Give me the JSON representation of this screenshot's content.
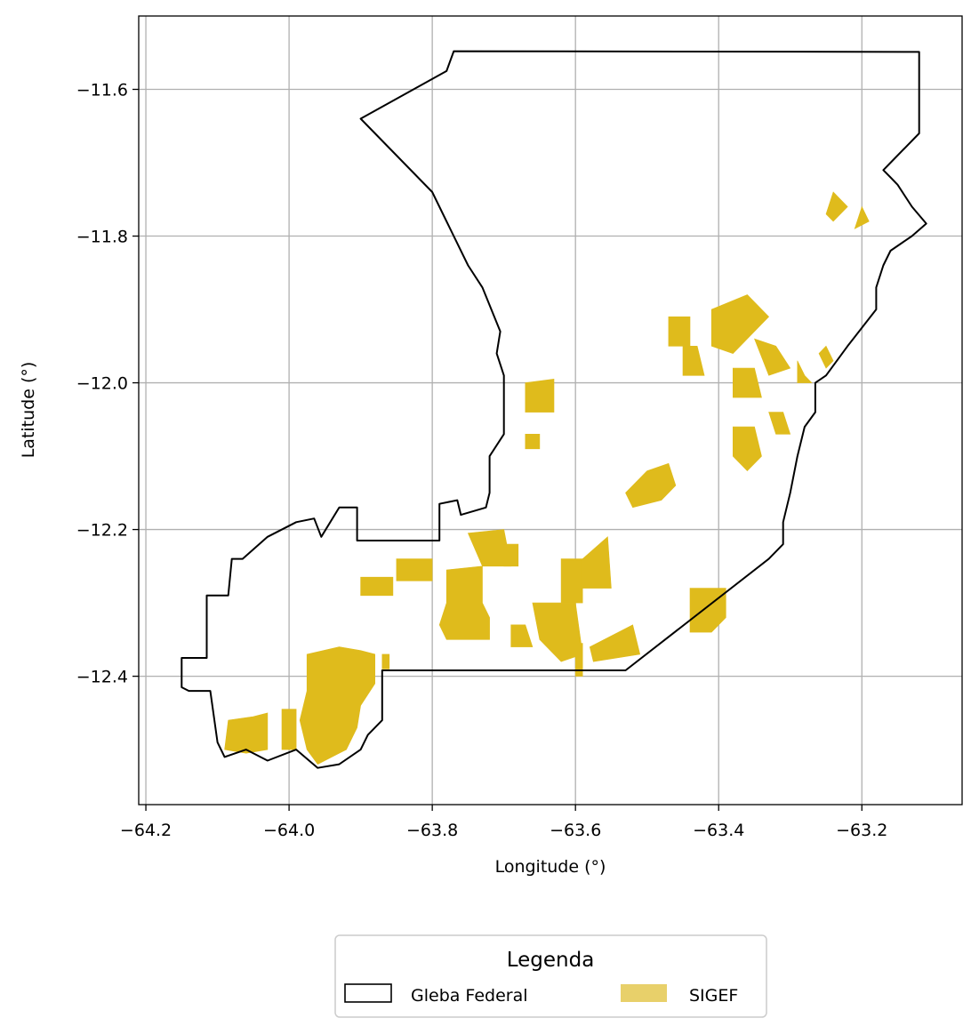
{
  "chart_data": {
    "type": "map",
    "xlabel": "Longitude (°)",
    "ylabel": "Latitude (°)",
    "xlim": [
      -64.21,
      -63.06
    ],
    "ylim": [
      -12.575,
      -11.5
    ],
    "grid": true,
    "x_ticks": [
      {
        "value": -64.2,
        "label": "−64.2"
      },
      {
        "value": -64.0,
        "label": "−64.0"
      },
      {
        "value": -63.8,
        "label": "−63.8"
      },
      {
        "value": -63.6,
        "label": "−63.6"
      },
      {
        "value": -63.4,
        "label": "−63.4"
      },
      {
        "value": -63.2,
        "label": "−63.2"
      }
    ],
    "y_ticks": [
      {
        "value": -11.6,
        "label": "−11.6"
      },
      {
        "value": -11.8,
        "label": "−11.8"
      },
      {
        "value": -12.0,
        "label": "−12.0"
      },
      {
        "value": -12.2,
        "label": "−12.2"
      },
      {
        "value": -12.4,
        "label": "−12.4"
      }
    ],
    "legend": {
      "title": "Legenda",
      "position": "bottom-center",
      "items": [
        {
          "label": "Gleba Federal",
          "style": "outline",
          "color": "#000000"
        },
        {
          "label": "SIGEF",
          "style": "fill",
          "color": "#E8D06A"
        }
      ]
    },
    "colors": {
      "boundary": "#000000",
      "parcel": "#DFBB1C",
      "grid": "#B0B0B0"
    },
    "boundary": [
      [
        -63.77,
        -11.548
      ],
      [
        -63.12,
        -11.549
      ],
      [
        -63.12,
        -11.66
      ],
      [
        -63.16,
        -11.7
      ],
      [
        -63.17,
        -11.71
      ],
      [
        -63.16,
        -11.72
      ],
      [
        -63.15,
        -11.73
      ],
      [
        -63.13,
        -11.76
      ],
      [
        -63.11,
        -11.783
      ],
      [
        -63.13,
        -11.8
      ],
      [
        -63.16,
        -11.82
      ],
      [
        -63.17,
        -11.84
      ],
      [
        -63.18,
        -11.87
      ],
      [
        -63.18,
        -11.9
      ],
      [
        -63.22,
        -11.95
      ],
      [
        -63.25,
        -11.99
      ],
      [
        -63.265,
        -12.0
      ],
      [
        -63.265,
        -12.04
      ],
      [
        -63.28,
        -12.06
      ],
      [
        -63.29,
        -12.1
      ],
      [
        -63.3,
        -12.15
      ],
      [
        -63.31,
        -12.19
      ],
      [
        -63.31,
        -12.22
      ],
      [
        -63.33,
        -12.24
      ],
      [
        -63.53,
        -12.392
      ],
      [
        -63.87,
        -12.392
      ],
      [
        -63.87,
        -12.46
      ],
      [
        -63.89,
        -12.48
      ],
      [
        -63.9,
        -12.5
      ],
      [
        -63.93,
        -12.52
      ],
      [
        -63.96,
        -12.525
      ],
      [
        -63.99,
        -12.5
      ],
      [
        -64.03,
        -12.515
      ],
      [
        -64.06,
        -12.5
      ],
      [
        -64.09,
        -12.51
      ],
      [
        -64.1,
        -12.49
      ],
      [
        -64.11,
        -12.42
      ],
      [
        -64.14,
        -12.42
      ],
      [
        -64.15,
        -12.415
      ],
      [
        -64.15,
        -12.375
      ],
      [
        -64.115,
        -12.375
      ],
      [
        -64.115,
        -12.29
      ],
      [
        -64.085,
        -12.29
      ],
      [
        -64.08,
        -12.24
      ],
      [
        -64.065,
        -12.24
      ],
      [
        -64.03,
        -12.21
      ],
      [
        -63.99,
        -12.19
      ],
      [
        -63.965,
        -12.185
      ],
      [
        -63.955,
        -12.21
      ],
      [
        -63.93,
        -12.17
      ],
      [
        -63.905,
        -12.17
      ],
      [
        -63.905,
        -12.215
      ],
      [
        -63.79,
        -12.215
      ],
      [
        -63.79,
        -12.165
      ],
      [
        -63.765,
        -12.16
      ],
      [
        -63.76,
        -12.18
      ],
      [
        -63.725,
        -12.17
      ],
      [
        -63.72,
        -12.15
      ],
      [
        -63.72,
        -12.1
      ],
      [
        -63.7,
        -12.07
      ],
      [
        -63.7,
        -11.99
      ],
      [
        -63.71,
        -11.96
      ],
      [
        -63.705,
        -11.93
      ],
      [
        -63.73,
        -11.87
      ],
      [
        -63.75,
        -11.84
      ],
      [
        -63.78,
        -11.78
      ],
      [
        -63.8,
        -11.74
      ],
      [
        -63.9,
        -11.64
      ],
      [
        -63.78,
        -11.575
      ]
    ],
    "parcels": [
      [
        [
          -63.975,
          -12.37
        ],
        [
          -63.93,
          -12.36
        ],
        [
          -63.9,
          -12.365
        ],
        [
          -63.88,
          -12.37
        ],
        [
          -63.88,
          -12.41
        ],
        [
          -63.9,
          -12.44
        ],
        [
          -63.905,
          -12.47
        ],
        [
          -63.92,
          -12.5
        ],
        [
          -63.96,
          -12.52
        ],
        [
          -63.975,
          -12.5
        ],
        [
          -63.985,
          -12.46
        ],
        [
          -63.975,
          -12.42
        ]
      ],
      [
        [
          -64.085,
          -12.46
        ],
        [
          -64.05,
          -12.455
        ],
        [
          -64.03,
          -12.45
        ],
        [
          -64.03,
          -12.5
        ],
        [
          -64.06,
          -12.505
        ],
        [
          -64.09,
          -12.5
        ]
      ],
      [
        [
          -64.01,
          -12.445
        ],
        [
          -63.99,
          -12.445
        ],
        [
          -63.99,
          -12.5
        ],
        [
          -64.01,
          -12.5
        ]
      ],
      [
        [
          -63.87,
          -12.37
        ],
        [
          -63.86,
          -12.37
        ],
        [
          -63.86,
          -12.39
        ],
        [
          -63.87,
          -12.39
        ]
      ],
      [
        [
          -63.78,
          -12.255
        ],
        [
          -63.73,
          -12.25
        ],
        [
          -63.73,
          -12.3
        ],
        [
          -63.72,
          -12.32
        ],
        [
          -63.72,
          -12.35
        ],
        [
          -63.78,
          -12.35
        ],
        [
          -63.79,
          -12.33
        ],
        [
          -63.78,
          -12.3
        ]
      ],
      [
        [
          -63.9,
          -12.265
        ],
        [
          -63.855,
          -12.265
        ],
        [
          -63.855,
          -12.29
        ],
        [
          -63.9,
          -12.29
        ]
      ],
      [
        [
          -63.85,
          -12.24
        ],
        [
          -63.8,
          -12.24
        ],
        [
          -63.8,
          -12.27
        ],
        [
          -63.85,
          -12.27
        ]
      ],
      [
        [
          -63.75,
          -12.205
        ],
        [
          -63.7,
          -12.2
        ],
        [
          -63.69,
          -12.25
        ],
        [
          -63.73,
          -12.25
        ]
      ],
      [
        [
          -63.7,
          -12.22
        ],
        [
          -63.68,
          -12.22
        ],
        [
          -63.68,
          -12.25
        ],
        [
          -63.7,
          -12.25
        ]
      ],
      [
        [
          -63.62,
          -12.24
        ],
        [
          -63.59,
          -12.24
        ],
        [
          -63.59,
          -12.3
        ],
        [
          -63.62,
          -12.3
        ]
      ],
      [
        [
          -63.66,
          -12.3
        ],
        [
          -63.6,
          -12.3
        ],
        [
          -63.59,
          -12.37
        ],
        [
          -63.62,
          -12.38
        ],
        [
          -63.65,
          -12.35
        ]
      ],
      [
        [
          -63.69,
          -12.33
        ],
        [
          -63.67,
          -12.33
        ],
        [
          -63.66,
          -12.36
        ],
        [
          -63.69,
          -12.36
        ]
      ],
      [
        [
          -63.59,
          -12.24
        ],
        [
          -63.555,
          -12.21
        ],
        [
          -63.55,
          -12.28
        ],
        [
          -63.59,
          -12.28
        ]
      ],
      [
        [
          -63.6,
          -12.355
        ],
        [
          -63.59,
          -12.355
        ],
        [
          -63.59,
          -12.4
        ],
        [
          -63.6,
          -12.4
        ]
      ],
      [
        [
          -63.58,
          -12.36
        ],
        [
          -63.52,
          -12.33
        ],
        [
          -63.51,
          -12.37
        ],
        [
          -63.575,
          -12.38
        ]
      ],
      [
        [
          -63.44,
          -12.28
        ],
        [
          -63.39,
          -12.28
        ],
        [
          -63.39,
          -12.32
        ],
        [
          -63.41,
          -12.34
        ],
        [
          -63.44,
          -12.34
        ]
      ],
      [
        [
          -63.5,
          -12.12
        ],
        [
          -63.47,
          -12.11
        ],
        [
          -63.46,
          -12.14
        ],
        [
          -63.48,
          -12.16
        ],
        [
          -63.52,
          -12.17
        ],
        [
          -63.53,
          -12.15
        ]
      ],
      [
        [
          -63.67,
          -12.0
        ],
        [
          -63.63,
          -11.995
        ],
        [
          -63.63,
          -12.04
        ],
        [
          -63.67,
          -12.04
        ]
      ],
      [
        [
          -63.67,
          -12.07
        ],
        [
          -63.65,
          -12.07
        ],
        [
          -63.65,
          -12.09
        ],
        [
          -63.67,
          -12.09
        ]
      ],
      [
        [
          -63.47,
          -11.91
        ],
        [
          -63.44,
          -11.91
        ],
        [
          -63.44,
          -11.95
        ],
        [
          -63.47,
          -11.95
        ]
      ],
      [
        [
          -63.45,
          -11.95
        ],
        [
          -63.43,
          -11.95
        ],
        [
          -63.42,
          -11.99
        ],
        [
          -63.45,
          -11.99
        ]
      ],
      [
        [
          -63.41,
          -11.9
        ],
        [
          -63.36,
          -11.88
        ],
        [
          -63.33,
          -11.91
        ],
        [
          -63.38,
          -11.96
        ],
        [
          -63.41,
          -11.95
        ]
      ],
      [
        [
          -63.38,
          -11.98
        ],
        [
          -63.35,
          -11.98
        ],
        [
          -63.34,
          -12.02
        ],
        [
          -63.38,
          -12.02
        ]
      ],
      [
        [
          -63.35,
          -11.94
        ],
        [
          -63.32,
          -11.95
        ],
        [
          -63.3,
          -11.98
        ],
        [
          -63.33,
          -11.99
        ]
      ],
      [
        [
          -63.38,
          -12.06
        ],
        [
          -63.35,
          -12.06
        ],
        [
          -63.34,
          -12.1
        ],
        [
          -63.36,
          -12.12
        ],
        [
          -63.38,
          -12.1
        ]
      ],
      [
        [
          -63.33,
          -12.04
        ],
        [
          -63.31,
          -12.04
        ],
        [
          -63.3,
          -12.07
        ],
        [
          -63.32,
          -12.07
        ]
      ],
      [
        [
          -63.25,
          -11.77
        ],
        [
          -63.24,
          -11.74
        ],
        [
          -63.22,
          -11.76
        ],
        [
          -63.24,
          -11.78
        ]
      ],
      [
        [
          -63.2,
          -11.76
        ],
        [
          -63.19,
          -11.78
        ],
        [
          -63.21,
          -11.79
        ]
      ],
      [
        [
          -63.25,
          -11.95
        ],
        [
          -63.24,
          -11.97
        ],
        [
          -63.25,
          -11.98
        ],
        [
          -63.26,
          -11.96
        ]
      ],
      [
        [
          -63.29,
          -11.97
        ],
        [
          -63.28,
          -11.99
        ],
        [
          -63.27,
          -12.0
        ],
        [
          -63.29,
          -12.0
        ]
      ]
    ]
  }
}
